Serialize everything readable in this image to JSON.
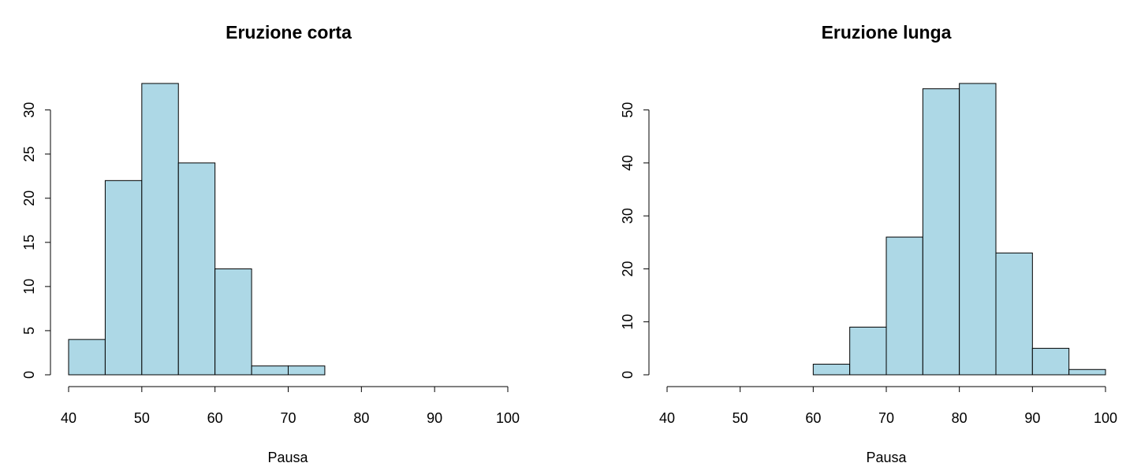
{
  "chart_data": [
    {
      "type": "bar",
      "title": "Eruzione corta",
      "xlabel": "Pausa",
      "ylabel": "",
      "bin_edges": [
        40,
        45,
        50,
        55,
        60,
        65,
        70,
        75
      ],
      "values": [
        4,
        22,
        33,
        24,
        12,
        1,
        1
      ],
      "xlim": [
        40,
        100
      ],
      "xticks": [
        40,
        50,
        60,
        70,
        80,
        90,
        100
      ],
      "ylim": [
        0,
        33
      ],
      "yticks": [
        0,
        5,
        10,
        15,
        20,
        25,
        30
      ],
      "grid": false,
      "bar_color": "#add8e6"
    },
    {
      "type": "bar",
      "title": "Eruzione lunga",
      "xlabel": "Pausa",
      "ylabel": "",
      "bin_edges": [
        60,
        65,
        70,
        75,
        80,
        85,
        90,
        95,
        100
      ],
      "values": [
        2,
        9,
        26,
        54,
        55,
        23,
        5,
        1
      ],
      "xlim": [
        40,
        100
      ],
      "xticks": [
        40,
        50,
        60,
        70,
        80,
        90,
        100
      ],
      "ylim": [
        0,
        55
      ],
      "yticks": [
        0,
        10,
        20,
        30,
        40,
        50
      ],
      "grid": false,
      "bar_color": "#add8e6"
    }
  ]
}
